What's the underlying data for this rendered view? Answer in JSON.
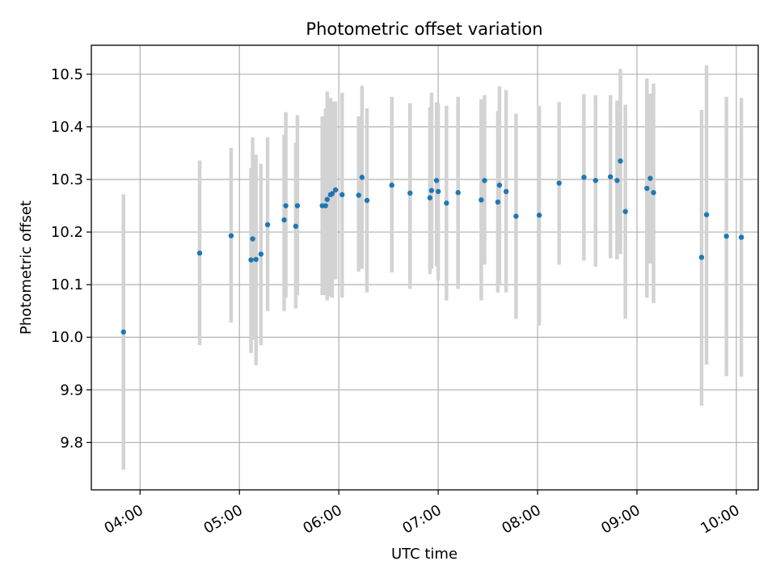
{
  "chart_data": {
    "type": "scatter",
    "title": "Photometric offset variation",
    "xlabel": "UTC time",
    "ylabel": "Photometric offset",
    "grid": true,
    "x_unit": "hours UTC",
    "xlim": [
      3.51,
      10.22
    ],
    "ylim": [
      9.71,
      10.555
    ],
    "x_ticks": [
      "04:00",
      "05:00",
      "06:00",
      "07:00",
      "08:00",
      "09:00",
      "10:00"
    ],
    "y_ticks": [
      "9.8",
      "9.9",
      "10.0",
      "10.1",
      "10.2",
      "10.3",
      "10.4",
      "10.5"
    ],
    "colors": {
      "marker": "#1f77b4",
      "errorbar": "#d3d3d3"
    },
    "series": [
      {
        "x": [
          "03:50",
          "04:36",
          "04:55",
          "05:07",
          "05:08",
          "05:10",
          "05:13",
          "05:17",
          "05:27",
          "05:28",
          "05:34",
          "05:35",
          "05:50",
          "05:52",
          "05:53",
          "05:55",
          "05:56",
          "05:58",
          "06:02",
          "06:12",
          "06:14",
          "06:17",
          "06:32",
          "06:43",
          "06:55",
          "06:56",
          "06:59",
          "07:00",
          "07:05",
          "07:12",
          "07:26",
          "07:28",
          "07:36",
          "07:37",
          "07:41",
          "07:47",
          "08:01",
          "08:13",
          "08:28",
          "08:35",
          "08:44",
          "08:48",
          "08:50",
          "08:53",
          "09:06",
          "09:08",
          "09:10",
          "09:39",
          "09:42",
          "09:54",
          "10:03"
        ],
        "y": [
          10.01,
          10.16,
          10.193,
          10.147,
          10.187,
          10.148,
          10.158,
          10.214,
          10.223,
          10.25,
          10.211,
          10.25,
          10.25,
          10.25,
          10.262,
          10.271,
          10.273,
          10.28,
          10.271,
          10.27,
          10.304,
          10.26,
          10.289,
          10.274,
          10.265,
          10.279,
          10.298,
          10.277,
          10.255,
          10.275,
          10.261,
          10.298,
          10.257,
          10.289,
          10.277,
          10.23,
          10.232,
          10.293,
          10.304,
          10.298,
          10.305,
          10.298,
          10.335,
          10.239,
          10.283,
          10.302,
          10.275,
          10.152,
          10.233,
          10.192,
          10.19
        ],
        "y_low": [
          9.748,
          9.985,
          10.028,
          9.97,
          9.995,
          9.947,
          9.985,
          10.05,
          10.05,
          10.075,
          10.055,
          10.08,
          10.08,
          10.08,
          10.07,
          10.078,
          10.075,
          10.11,
          10.075,
          10.125,
          10.13,
          10.085,
          10.123,
          10.092,
          10.12,
          10.13,
          10.135,
          10.108,
          10.07,
          10.092,
          10.07,
          10.138,
          10.085,
          10.1,
          10.085,
          10.035,
          10.022,
          10.138,
          10.146,
          10.134,
          10.15,
          10.148,
          10.158,
          10.035,
          10.075,
          10.14,
          10.065,
          9.87,
          9.948,
          9.926,
          9.925
        ],
        "y_high": [
          10.272,
          10.336,
          10.36,
          10.322,
          10.38,
          10.347,
          10.33,
          10.38,
          10.385,
          10.428,
          10.37,
          10.422,
          10.42,
          10.435,
          10.467,
          10.455,
          10.448,
          10.448,
          10.465,
          10.42,
          10.478,
          10.435,
          10.457,
          10.445,
          10.437,
          10.465,
          10.447,
          10.445,
          10.44,
          10.457,
          10.452,
          10.46,
          10.43,
          10.477,
          10.47,
          10.425,
          10.44,
          10.447,
          10.462,
          10.46,
          10.46,
          10.45,
          10.51,
          10.442,
          10.492,
          10.463,
          10.482,
          10.432,
          10.517,
          10.457,
          10.455
        ]
      }
    ]
  }
}
